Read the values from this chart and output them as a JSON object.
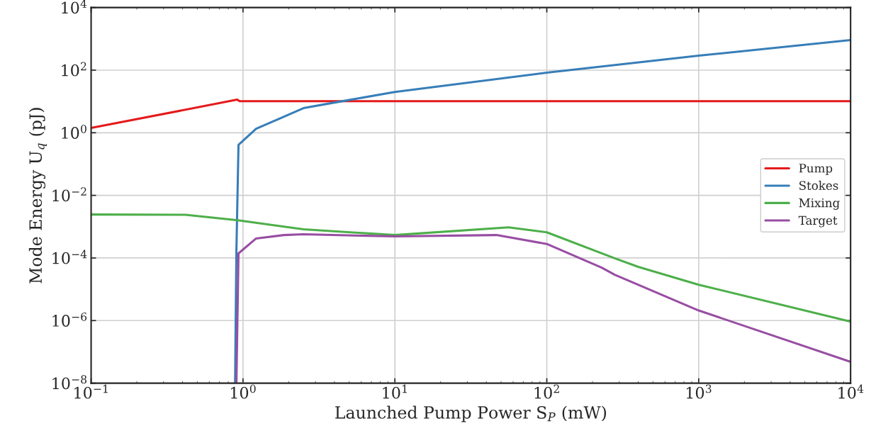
{
  "chart_data": {
    "type": "line",
    "xlabel": "Launched Pump Power S$_{P}$ (mW)",
    "ylabel": "Mode Energy U$_{q}$ (pJ)",
    "log": "xy",
    "grid": true,
    "legend": "center right",
    "line_style": "solid",
    "xlim": [
      0.1,
      10000
    ],
    "ylim": [
      1e-08,
      10000
    ],
    "xticks": [
      {
        "value": 0.1,
        "label": "10$^{−1}$"
      },
      {
        "value": 1,
        "label": "10$^{0}$"
      },
      {
        "value": 10,
        "label": "10$^{1}$"
      },
      {
        "value": 100,
        "label": "10$^{2}$"
      },
      {
        "value": 1000,
        "label": "10$^{3}$"
      },
      {
        "value": 10000,
        "label": "10$^{4}$"
      }
    ],
    "yticks": [
      {
        "value": 1e-08,
        "label": "10$^{−8}$"
      },
      {
        "value": 1e-06,
        "label": "10$^{−6}$"
      },
      {
        "value": 0.0001,
        "label": "10$^{−4}$"
      },
      {
        "value": 0.01,
        "label": "10$^{−2}$"
      },
      {
        "value": 1,
        "label": "10$^{0}$"
      },
      {
        "value": 100,
        "label": "10$^{2}$"
      },
      {
        "value": 10000,
        "label": "10$^{4}$"
      }
    ],
    "series": [
      {
        "name": "Pump",
        "color": "#e41a1c",
        "x": [
          0.1,
          0.916,
          0.95,
          10000
        ],
        "values": [
          1.42,
          11.4,
          10.2,
          10.2
        ]
      },
      {
        "name": "Stokes",
        "color": "#377eb8",
        "x": [
          0.887,
          0.905,
          0.934,
          1.22,
          1.76,
          2.5,
          4.4,
          10,
          100,
          1000,
          10000
        ],
        "values": [
          1e-08,
          0.00018,
          0.41,
          1.35,
          2.9,
          6.1,
          10,
          20,
          83,
          290,
          910
        ]
      },
      {
        "name": "Mixing",
        "color": "#4daf4a",
        "x": [
          0.1,
          0.417,
          0.925,
          1.86,
          2.5,
          10,
          56,
          100,
          280,
          400,
          1000,
          10000
        ],
        "values": [
          0.00245,
          0.0024,
          0.0016,
          0.001,
          0.00082,
          0.00054,
          0.00095,
          0.00066,
          9.8e-05,
          5.2e-05,
          1.4e-05,
          9.3e-07
        ]
      },
      {
        "name": "Target",
        "color": "#984ea3",
        "x": [
          0.905,
          0.934,
          1.22,
          1.86,
          2.5,
          10,
          46.6,
          100,
          230,
          280,
          1000,
          10000
        ],
        "values": [
          1e-08,
          0.00014,
          0.00042,
          0.00054,
          0.00057,
          0.00049,
          0.00054,
          0.00028,
          4.9e-05,
          2.9e-05,
          2.1e-06,
          4.8e-08
        ]
      }
    ]
  }
}
